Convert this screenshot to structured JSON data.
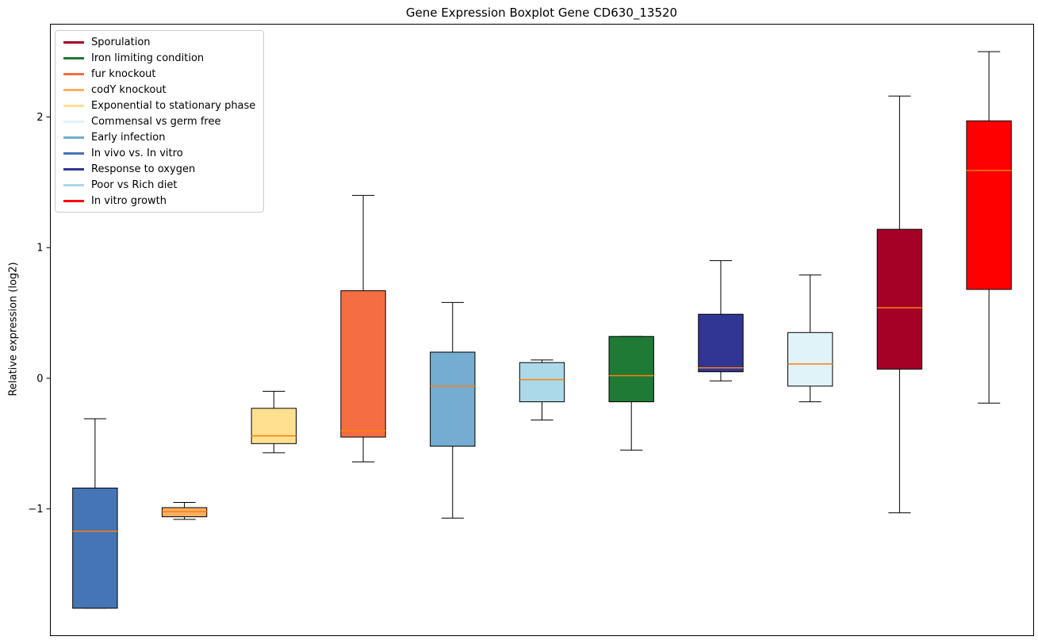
{
  "chart_data": {
    "type": "boxplot",
    "title": "Gene Expression Boxplot Gene CD630_13520",
    "ylabel": "Relative expression (log2)",
    "xlabel": "",
    "ylim": [
      -1.97,
      2.71
    ],
    "yticks": [
      -1,
      0,
      1,
      2
    ],
    "grid": false,
    "legend_position": "upper-left",
    "median_color": "#ff7f0e",
    "box_edge_color": "#000000",
    "legend": [
      {
        "label": "Sporulation",
        "color": "#a50026"
      },
      {
        "label": "Iron limiting condition",
        "color": "#1e7a34"
      },
      {
        "label": "fur knockout",
        "color": "#f46d43"
      },
      {
        "label": "codY knockout",
        "color": "#fdae61"
      },
      {
        "label": "Exponential to stationary phase",
        "color": "#fee090"
      },
      {
        "label": "Commensal vs germ free",
        "color": "#e0f3f8"
      },
      {
        "label": "Early infection",
        "color": "#74add1"
      },
      {
        "label": "In vivo vs. In vitro",
        "color": "#4575b4"
      },
      {
        "label": "Response to oxygen",
        "color": "#313695"
      },
      {
        "label": "Poor vs Rich diet",
        "color": "#abd9e9"
      },
      {
        "label": "In vitro growth",
        "color": "#ff0000"
      }
    ],
    "boxes": [
      {
        "condition": "In vivo vs. In vitro",
        "color": "#4575b4",
        "whisker_low": -1.76,
        "q1": -1.76,
        "median": -1.17,
        "q3": -0.84,
        "whisker_high": -0.31
      },
      {
        "condition": "codY knockout",
        "color": "#fdae61",
        "whisker_low": -1.08,
        "q1": -1.06,
        "median": -1.02,
        "q3": -0.99,
        "whisker_high": -0.95
      },
      {
        "condition": "Exponential to stationary phase",
        "color": "#fee090",
        "whisker_low": -0.57,
        "q1": -0.5,
        "median": -0.44,
        "q3": -0.23,
        "whisker_high": -0.1
      },
      {
        "condition": "fur knockout",
        "color": "#f46d43",
        "whisker_low": -0.64,
        "q1": -0.45,
        "median": -0.4,
        "q3": 0.67,
        "whisker_high": 1.4
      },
      {
        "condition": "Early infection",
        "color": "#74add1",
        "whisker_low": -1.07,
        "q1": -0.52,
        "median": -0.06,
        "q3": 0.2,
        "whisker_high": 0.58
      },
      {
        "condition": "Poor vs Rich diet",
        "color": "#abd9e9",
        "whisker_low": -0.32,
        "q1": -0.18,
        "median": -0.01,
        "q3": 0.12,
        "whisker_high": 0.14
      },
      {
        "condition": "Iron limiting condition",
        "color": "#1e7a34",
        "whisker_low": -0.55,
        "q1": -0.18,
        "median": 0.02,
        "q3": 0.32,
        "whisker_high": 0.32
      },
      {
        "condition": "Response to oxygen",
        "color": "#313695",
        "whisker_low": -0.02,
        "q1": 0.05,
        "median": 0.08,
        "q3": 0.49,
        "whisker_high": 0.9
      },
      {
        "condition": "Commensal vs germ free",
        "color": "#e0f3f8",
        "whisker_low": -0.18,
        "q1": -0.06,
        "median": 0.11,
        "q3": 0.35,
        "whisker_high": 0.79
      },
      {
        "condition": "Sporulation",
        "color": "#a50026",
        "whisker_low": -1.03,
        "q1": 0.07,
        "median": 0.54,
        "q3": 1.14,
        "whisker_high": 2.16
      },
      {
        "condition": "In vitro growth",
        "color": "#ff0000",
        "whisker_low": -0.19,
        "q1": 0.68,
        "median": 1.59,
        "q3": 1.97,
        "whisker_high": 2.5
      }
    ]
  }
}
